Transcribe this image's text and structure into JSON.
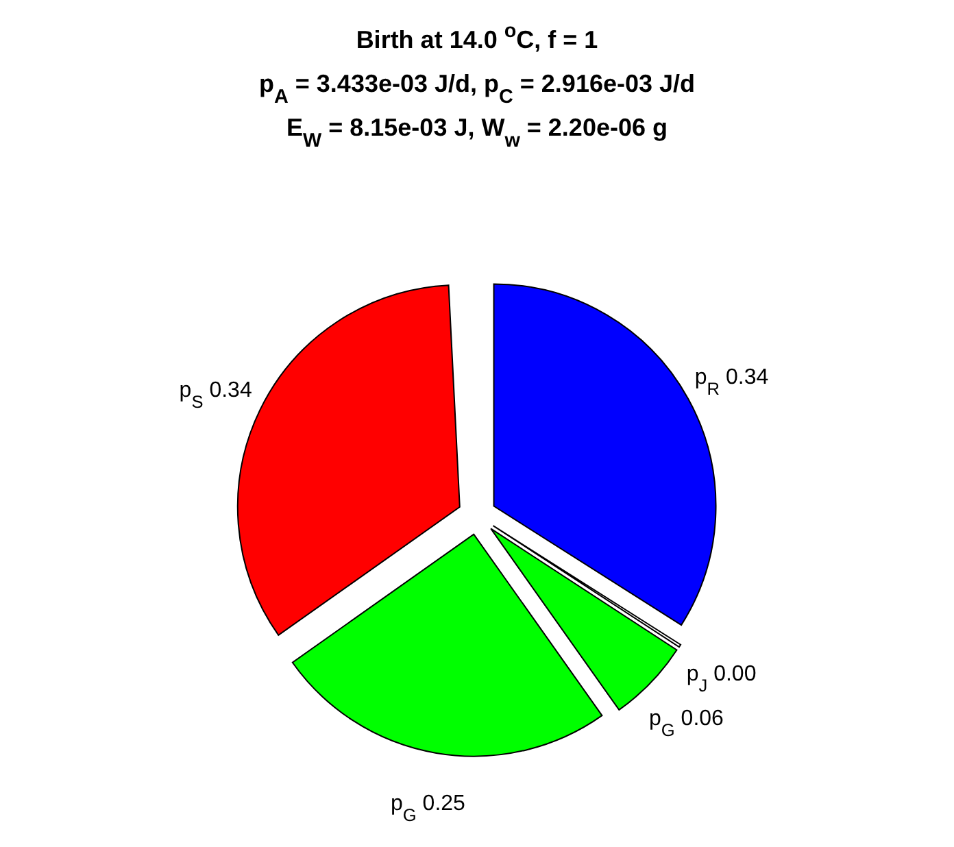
{
  "chart_data": {
    "type": "pie",
    "title": "Birth at 14.0 $^{o}$C, f = 1\np$_{A}$ = 3.433e-03 J/d, p$_{C}$ = 2.916e-03 J/d\nE$_{W}$ = 8.15e-03 J, W$_{w}$ = 2.20e-06 g",
    "categories": [
      "p$_{R}$",
      "p$_{J}$",
      "p$_{G}$",
      "p$_{G}$",
      "p$_{S}$"
    ],
    "values": [
      0.34,
      0.002,
      0.06,
      0.25,
      0.34
    ],
    "value_labels": [
      "0.34",
      "0.00",
      "0.06",
      "0.25",
      "0.34"
    ],
    "colors": [
      "#0000ff",
      "#ffffff",
      "#00ff00",
      "#00ff00",
      "#ff0000"
    ]
  }
}
